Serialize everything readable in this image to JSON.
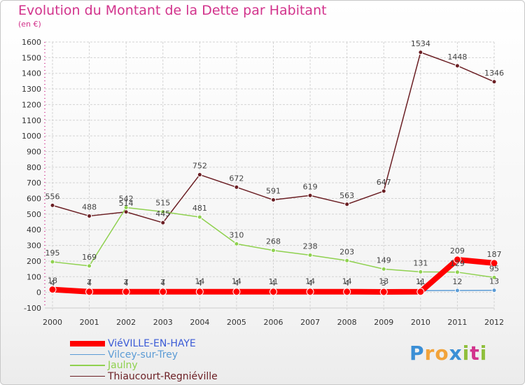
{
  "title": "Evolution du Montant de la Dette par Habitant",
  "unit": "(en €)",
  "logo": {
    "text": "Proxiti",
    "letters": [
      {
        "ch": "P",
        "color": "#3b8fd6"
      },
      {
        "ch": "r",
        "color": "#f2a33a"
      },
      {
        "ch": "o",
        "color": "#f2a33a"
      },
      {
        "ch": "x",
        "color": "#3b8fd6"
      },
      {
        "ch": "i",
        "color": "#8fbf3c"
      },
      {
        "ch": "t",
        "color": "#d2338c"
      },
      {
        "ch": "i",
        "color": "#8fbf3c"
      }
    ]
  },
  "chart_data": {
    "type": "line",
    "x": [
      "2000",
      "2001",
      "2002",
      "2003",
      "2004",
      "2005",
      "2006",
      "2007",
      "2008",
      "2009",
      "2010",
      "2011",
      "2012"
    ],
    "ylim": [
      -100,
      1600
    ],
    "yticks": [
      -100,
      0,
      100,
      200,
      300,
      400,
      500,
      600,
      700,
      800,
      900,
      1000,
      1100,
      1200,
      1300,
      1400,
      1500,
      1600
    ],
    "grid": true,
    "legend_position": "bottom-left",
    "series": [
      {
        "name": "ViéVILLE-EN-HAYE",
        "color": "#ff0000",
        "values": [
          18,
          4,
          4,
          4,
          4,
          4,
          4,
          4,
          4,
          3,
          4,
          209,
          187
        ],
        "labels": [
          "18",
          "4",
          "4",
          "4",
          "4",
          "4",
          "4",
          "4",
          "4",
          "3",
          "4",
          "209",
          "187"
        ]
      },
      {
        "name": "Vilcey-sur-Trey",
        "color": "#5b9bd5",
        "values": [
          4,
          7,
          7,
          7,
          14,
          14,
          11,
          14,
          14,
          13,
          11,
          12,
          13
        ],
        "labels": [
          "4",
          "7",
          "7",
          "7",
          "14",
          "14",
          "11",
          "14",
          "14",
          "13",
          "11",
          "12",
          "13"
        ]
      },
      {
        "name": "Jaulny",
        "color": "#8fd14f",
        "values": [
          195,
          169,
          542,
          515,
          481,
          310,
          268,
          238,
          203,
          149,
          131,
          129,
          95
        ],
        "labels": [
          "195",
          "169",
          "542",
          "515",
          "481",
          "310",
          "268",
          "238",
          "203",
          "149",
          "131",
          "129",
          "95"
        ]
      },
      {
        "name": "Thiaucourt-Regniéville",
        "color": "#6b1f24",
        "values": [
          556,
          488,
          514,
          445,
          752,
          672,
          591,
          619,
          563,
          647,
          1534,
          1448,
          1346
        ],
        "labels": [
          "556",
          "488",
          "514",
          "445",
          "752",
          "672",
          "591",
          "619",
          "563",
          "647",
          "1534",
          "1448",
          "1346"
        ]
      }
    ]
  }
}
